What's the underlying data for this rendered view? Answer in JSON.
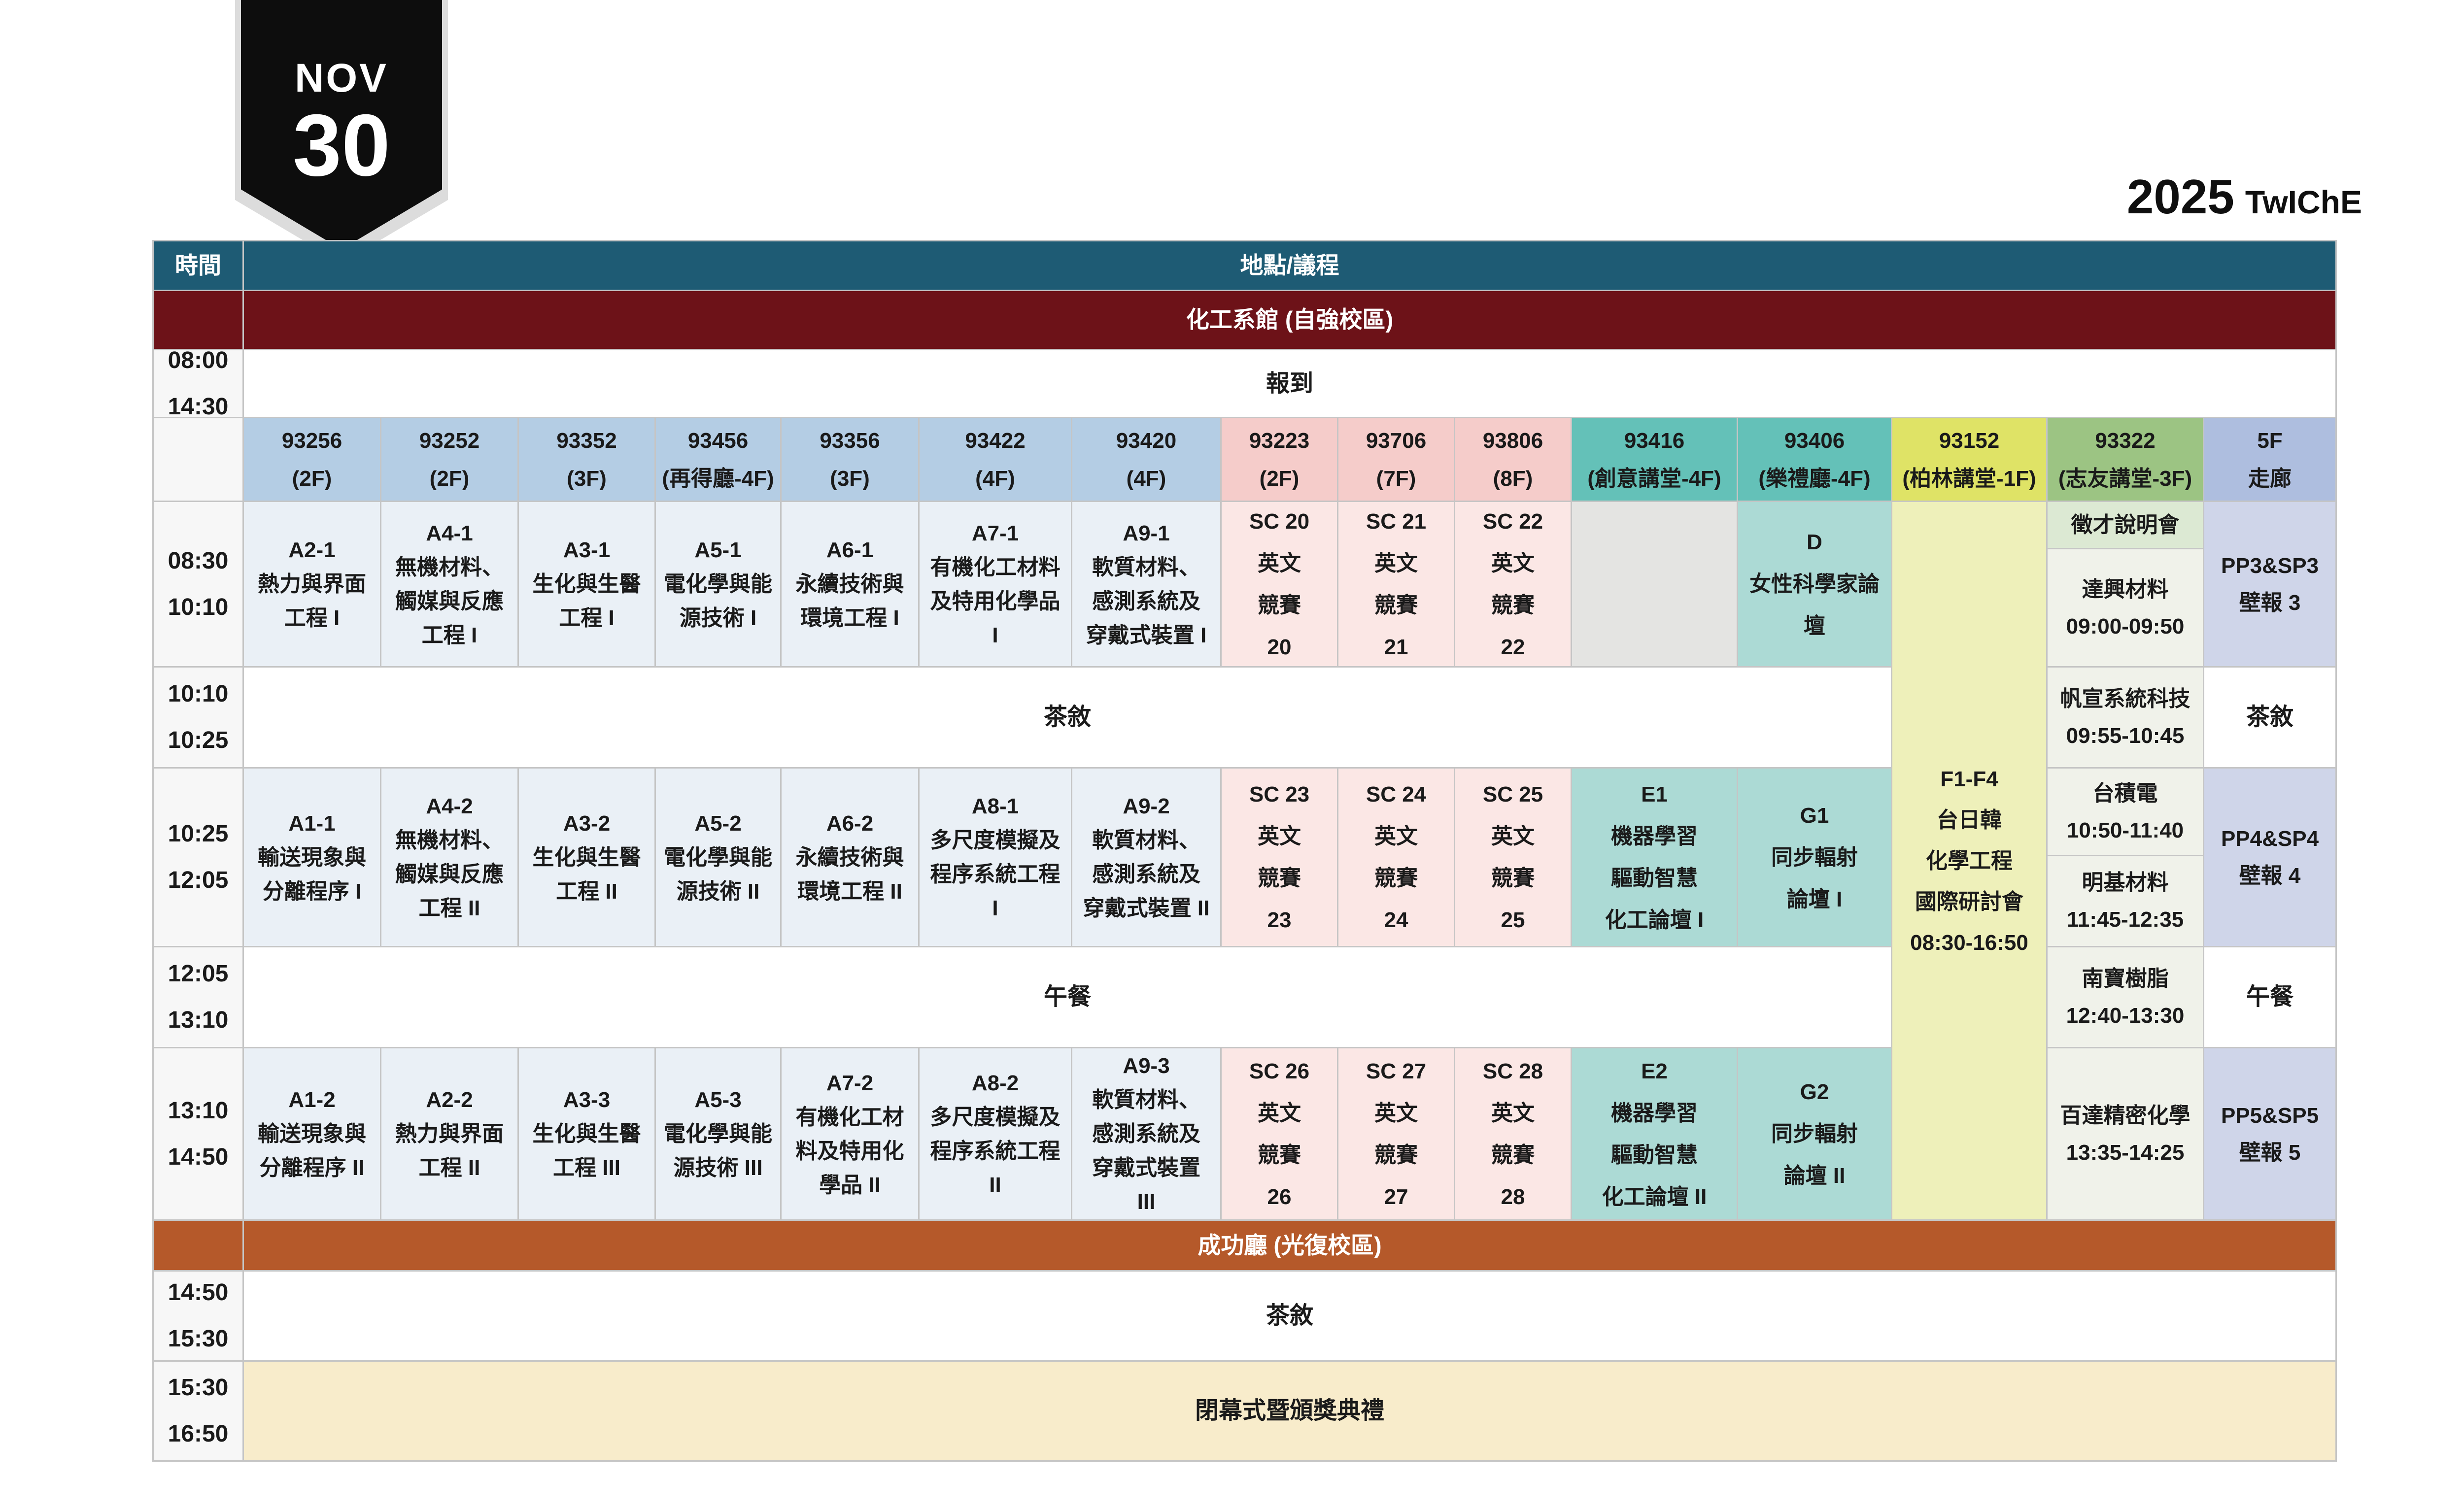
{
  "banner": {
    "month": "NOV",
    "day": "30"
  },
  "title": {
    "year": "2025",
    "brand": "TwIChE"
  },
  "kind_styles": {
    "th": {
      "bg": "#1E5B74",
      "fg": "#FFFFFF"
    },
    "red": {
      "bg": "#6D1218",
      "fg": "#FFFFFF"
    },
    "orange": {
      "bg": "#B5592A",
      "fg": "#FFFFFF"
    },
    "time": {
      "bg": "#F7F7F7"
    },
    "timeblank": {
      "bg": "#F7F7F7"
    },
    "plain": {
      "bg": "#FFFFFF"
    },
    "cream": {
      "bg": "#F8ECCB"
    },
    "session": {
      "bg": "#EAF0F6"
    },
    "sc": {
      "bg": "#FBE7E5"
    },
    "gray": {
      "bg": "#E4E4E2"
    },
    "forum": {
      "bg": "#ACDAD5"
    },
    "f1f4": {
      "bg": "#EEF0BA"
    },
    "recruit": {
      "bg": "#DCE9D3"
    },
    "sponsor": {
      "bg": "#F0F2EA"
    },
    "poster": {
      "bg": "#CFD5E9"
    },
    "hb": {
      "bg": "#B4CDE4"
    },
    "hp": {
      "bg": "#F5CCCA"
    },
    "ht": {
      "bg": "#64C1B8"
    },
    "hy": {
      "bg": "#DFE366"
    },
    "hg": {
      "bg": "#9CC483"
    },
    "hl": {
      "bg": "#AEBEDF"
    }
  },
  "table": {
    "cells": [
      {
        "n": "time-header",
        "k": "th",
        "c": 1,
        "r": 1,
        "t": [
          "時間"
        ]
      },
      {
        "n": "venue-header",
        "k": "th",
        "c": 2,
        "r": 1,
        "cs": 15,
        "t": [
          "地點/議程"
        ]
      },
      {
        "n": "building-1-time",
        "k": "red",
        "c": 1,
        "r": 2,
        "t": []
      },
      {
        "n": "building-1",
        "k": "red",
        "c": 2,
        "r": 2,
        "cs": 15,
        "t": [
          "化工系館 (自強校區)"
        ]
      },
      {
        "n": "time-registration",
        "k": "time",
        "c": 1,
        "r": 3,
        "t": [
          "08:00",
          "14:30"
        ]
      },
      {
        "n": "registration",
        "k": "plain",
        "c": 2,
        "r": 3,
        "cs": 15,
        "t": [
          "報到"
        ]
      },
      {
        "n": "colhead-blank",
        "k": "timeblank",
        "c": 1,
        "r": 4,
        "t": []
      },
      {
        "n": "colhead-93256",
        "k": "hb",
        "c": 2,
        "r": 4,
        "t": [
          "93256",
          "(2F)"
        ]
      },
      {
        "n": "colhead-93252",
        "k": "hb",
        "c": 3,
        "r": 4,
        "t": [
          "93252",
          "(2F)"
        ]
      },
      {
        "n": "colhead-93352",
        "k": "hb",
        "c": 4,
        "r": 4,
        "t": [
          "93352",
          "(3F)"
        ]
      },
      {
        "n": "colhead-93456",
        "k": "hb",
        "c": 5,
        "r": 4,
        "t": [
          "93456",
          "(再得廳-4F)"
        ]
      },
      {
        "n": "colhead-93356",
        "k": "hb",
        "c": 6,
        "r": 4,
        "t": [
          "93356",
          "(3F)"
        ]
      },
      {
        "n": "colhead-93422",
        "k": "hb",
        "c": 7,
        "r": 4,
        "t": [
          "93422",
          "(4F)"
        ]
      },
      {
        "n": "colhead-93420",
        "k": "hb",
        "c": 8,
        "r": 4,
        "t": [
          "93420",
          "(4F)"
        ]
      },
      {
        "n": "colhead-93223",
        "k": "hp",
        "c": 9,
        "r": 4,
        "t": [
          "93223",
          "(2F)"
        ]
      },
      {
        "n": "colhead-93706",
        "k": "hp",
        "c": 10,
        "r": 4,
        "t": [
          "93706",
          "(7F)"
        ]
      },
      {
        "n": "colhead-93806",
        "k": "hp",
        "c": 11,
        "r": 4,
        "t": [
          "93806",
          "(8F)"
        ]
      },
      {
        "n": "colhead-93416",
        "k": "ht",
        "c": 12,
        "r": 4,
        "t": [
          "93416",
          "(創意講堂-4F)"
        ]
      },
      {
        "n": "colhead-93406",
        "k": "ht",
        "c": 13,
        "r": 4,
        "t": [
          "93406",
          "(樂禮廳-4F)"
        ]
      },
      {
        "n": "colhead-93152",
        "k": "hy",
        "c": 14,
        "r": 4,
        "t": [
          "93152",
          "(柏林講堂-1F)"
        ]
      },
      {
        "n": "colhead-93322",
        "k": "hg",
        "c": 15,
        "r": 4,
        "t": [
          "93322",
          "(志友講堂-3F)"
        ]
      },
      {
        "n": "colhead-5f",
        "k": "hl",
        "c": 16,
        "r": 4,
        "t": [
          "5F",
          "走廊"
        ]
      },
      {
        "n": "time-0830",
        "k": "time",
        "c": 1,
        "r": 5,
        "rs": 2,
        "t": [
          "08:30",
          "10:10"
        ]
      },
      {
        "n": "cell-a2-1",
        "k": "session",
        "c": 2,
        "r": 5,
        "rs": 2,
        "t": [
          "A2-1",
          "熱力與界面",
          "工程 I"
        ]
      },
      {
        "n": "cell-a4-1",
        "k": "session",
        "c": 3,
        "r": 5,
        "rs": 2,
        "t": [
          "A4-1",
          "無機材料、",
          "觸媒與反應",
          "工程 I"
        ]
      },
      {
        "n": "cell-a3-1",
        "k": "session",
        "c": 4,
        "r": 5,
        "rs": 2,
        "t": [
          "A3-1",
          "生化與生醫",
          "工程 I"
        ]
      },
      {
        "n": "cell-a5-1",
        "k": "session",
        "c": 5,
        "r": 5,
        "rs": 2,
        "t": [
          "A5-1",
          "電化學與能",
          "源技術 I"
        ]
      },
      {
        "n": "cell-a6-1",
        "k": "session",
        "c": 6,
        "r": 5,
        "rs": 2,
        "t": [
          "A6-1",
          "永續技術與",
          "環境工程 I"
        ]
      },
      {
        "n": "cell-a7-1",
        "k": "session",
        "c": 7,
        "r": 5,
        "rs": 2,
        "t": [
          "A7-1",
          "有機化工材料",
          "及特用化學品",
          "I"
        ]
      },
      {
        "n": "cell-a9-1",
        "k": "session",
        "c": 8,
        "r": 5,
        "rs": 2,
        "t": [
          "A9-1",
          "軟質材料、",
          "感測系統及",
          "穿戴式裝置 I"
        ]
      },
      {
        "n": "cell-sc20",
        "k": "sc",
        "c": 9,
        "r": 5,
        "rs": 2,
        "t": [
          "SC 20",
          "英文",
          "競賽",
          "20"
        ]
      },
      {
        "n": "cell-sc21",
        "k": "sc",
        "c": 10,
        "r": 5,
        "rs": 2,
        "t": [
          "SC 21",
          "英文",
          "競賽",
          "21"
        ]
      },
      {
        "n": "cell-sc22",
        "k": "sc",
        "c": 11,
        "r": 5,
        "rs": 2,
        "t": [
          "SC 22",
          "英文",
          "競賽",
          "22"
        ]
      },
      {
        "n": "cell-93416-empty",
        "k": "gray",
        "c": 12,
        "r": 5,
        "rs": 2,
        "t": []
      },
      {
        "n": "cell-d-forum",
        "k": "forum",
        "c": 13,
        "r": 5,
        "rs": 2,
        "t": [
          "D",
          "女性科學家論",
          "壇"
        ]
      },
      {
        "n": "cell-f1-f4",
        "k": "f1f4",
        "c": 14,
        "r": 5,
        "rs": 7,
        "t": [
          "F1-F4",
          "台日韓",
          "化學工程",
          "國際研討會",
          "08:30-16:50"
        ]
      },
      {
        "n": "cell-recruit",
        "k": "recruit",
        "c": 15,
        "r": 5,
        "t": [
          "徵才說明會"
        ]
      },
      {
        "n": "cell-daxin",
        "k": "sponsor",
        "c": 15,
        "r": 6,
        "t": [
          "達興材料",
          "09:00-09:50"
        ]
      },
      {
        "n": "cell-pp3",
        "k": "poster",
        "c": 16,
        "r": 5,
        "rs": 2,
        "t": [
          "PP3&SP3",
          "壁報 3"
        ]
      },
      {
        "n": "time-1010",
        "k": "time",
        "c": 1,
        "r": 7,
        "t": [
          "10:10",
          "10:25"
        ]
      },
      {
        "n": "tea-break-1",
        "k": "plain",
        "c": 2,
        "r": 7,
        "cs": 12,
        "t": [
          "茶敘"
        ]
      },
      {
        "n": "cell-mirle",
        "k": "sponsor",
        "c": 15,
        "r": 7,
        "t": [
          "帆宣系統科技",
          "09:55-10:45"
        ]
      },
      {
        "n": "tea-break-1b",
        "k": "plain",
        "c": 16,
        "r": 7,
        "t": [
          "茶敘"
        ]
      },
      {
        "n": "time-1025",
        "k": "time",
        "c": 1,
        "r": 8,
        "rs": 2,
        "t": [
          "10:25",
          "12:05"
        ]
      },
      {
        "n": "cell-a1-1",
        "k": "session",
        "c": 2,
        "r": 8,
        "rs": 2,
        "t": [
          "A1-1",
          "輸送現象與",
          "分離程序 I"
        ]
      },
      {
        "n": "cell-a4-2",
        "k": "session",
        "c": 3,
        "r": 8,
        "rs": 2,
        "t": [
          "A4-2",
          "無機材料、",
          "觸媒與反應",
          "工程 II"
        ]
      },
      {
        "n": "cell-a3-2",
        "k": "session",
        "c": 4,
        "r": 8,
        "rs": 2,
        "t": [
          "A3-2",
          "生化與生醫",
          "工程 II"
        ]
      },
      {
        "n": "cell-a5-2",
        "k": "session",
        "c": 5,
        "r": 8,
        "rs": 2,
        "t": [
          "A5-2",
          "電化學與能",
          "源技術 II"
        ]
      },
      {
        "n": "cell-a6-2",
        "k": "session",
        "c": 6,
        "r": 8,
        "rs": 2,
        "t": [
          "A6-2",
          "永續技術與",
          "環境工程 II"
        ]
      },
      {
        "n": "cell-a8-1",
        "k": "session",
        "c": 7,
        "r": 8,
        "rs": 2,
        "t": [
          "A8-1",
          "多尺度模擬及",
          "程序系統工程",
          "I"
        ]
      },
      {
        "n": "cell-a9-2",
        "k": "session",
        "c": 8,
        "r": 8,
        "rs": 2,
        "t": [
          "A9-2",
          "軟質材料、",
          "感測系統及",
          "穿戴式裝置 II"
        ]
      },
      {
        "n": "cell-sc23",
        "k": "sc",
        "c": 9,
        "r": 8,
        "rs": 2,
        "t": [
          "SC 23",
          "英文",
          "競賽",
          "23"
        ]
      },
      {
        "n": "cell-sc24",
        "k": "sc",
        "c": 10,
        "r": 8,
        "rs": 2,
        "t": [
          "SC 24",
          "英文",
          "競賽",
          "24"
        ]
      },
      {
        "n": "cell-sc25",
        "k": "sc",
        "c": 11,
        "r": 8,
        "rs": 2,
        "t": [
          "SC 25",
          "英文",
          "競賽",
          "25"
        ]
      },
      {
        "n": "cell-e1",
        "k": "forum",
        "c": 12,
        "r": 8,
        "rs": 2,
        "t": [
          "E1",
          "機器學習",
          "驅動智慧",
          "化工論壇 I"
        ]
      },
      {
        "n": "cell-g1",
        "k": "forum",
        "c": 13,
        "r": 8,
        "rs": 2,
        "t": [
          "G1",
          "同步輻射",
          "論壇 I"
        ]
      },
      {
        "n": "cell-tsmc",
        "k": "sponsor",
        "c": 15,
        "r": 8,
        "t": [
          "台積電",
          "10:50-11:40"
        ]
      },
      {
        "n": "cell-benq",
        "k": "sponsor",
        "c": 15,
        "r": 9,
        "t": [
          "明基材料",
          "11:45-12:35"
        ]
      },
      {
        "n": "cell-pp4",
        "k": "poster",
        "c": 16,
        "r": 8,
        "rs": 2,
        "t": [
          "PP4&SP4",
          "壁報 4"
        ]
      },
      {
        "n": "time-1205",
        "k": "time",
        "c": 1,
        "r": 10,
        "t": [
          "12:05",
          "13:10"
        ]
      },
      {
        "n": "lunch-1",
        "k": "plain",
        "c": 2,
        "r": 10,
        "cs": 12,
        "t": [
          "午餐"
        ]
      },
      {
        "n": "cell-nanpao",
        "k": "sponsor",
        "c": 15,
        "r": 10,
        "t": [
          "南寶樹脂",
          "12:40-13:30"
        ]
      },
      {
        "n": "lunch-1b",
        "k": "plain",
        "c": 16,
        "r": 10,
        "t": [
          "午餐"
        ]
      },
      {
        "n": "time-1310",
        "k": "time",
        "c": 1,
        "r": 11,
        "t": [
          "13:10",
          "14:50"
        ]
      },
      {
        "n": "cell-a1-2",
        "k": "session",
        "c": 2,
        "r": 11,
        "t": [
          "A1-2",
          "輸送現象與",
          "分離程序 II"
        ]
      },
      {
        "n": "cell-a2-2",
        "k": "session",
        "c": 3,
        "r": 11,
        "t": [
          "A2-2",
          "熱力與界面",
          "工程 II"
        ]
      },
      {
        "n": "cell-a3-3",
        "k": "session",
        "c": 4,
        "r": 11,
        "t": [
          "A3-3",
          "生化與生醫",
          "工程 III"
        ]
      },
      {
        "n": "cell-a5-3",
        "k": "session",
        "c": 5,
        "r": 11,
        "t": [
          "A5-3",
          "電化學與能",
          "源技術 III"
        ]
      },
      {
        "n": "cell-a7-2",
        "k": "session",
        "c": 6,
        "r": 11,
        "t": [
          "A7-2",
          "有機化工材",
          "料及特用化",
          "學品 II"
        ]
      },
      {
        "n": "cell-a8-2",
        "k": "session",
        "c": 7,
        "r": 11,
        "t": [
          "A8-2",
          "多尺度模擬及",
          "程序系統工程",
          "II"
        ]
      },
      {
        "n": "cell-a9-3",
        "k": "session",
        "c": 8,
        "r": 11,
        "t": [
          "A9-3",
          "軟質材料、",
          "感測系統及",
          "穿戴式裝置",
          "III"
        ]
      },
      {
        "n": "cell-sc26",
        "k": "sc",
        "c": 9,
        "r": 11,
        "t": [
          "SC 26",
          "英文",
          "競賽",
          "26"
        ]
      },
      {
        "n": "cell-sc27",
        "k": "sc",
        "c": 10,
        "r": 11,
        "t": [
          "SC 27",
          "英文",
          "競賽",
          "27"
        ]
      },
      {
        "n": "cell-sc28",
        "k": "sc",
        "c": 11,
        "r": 11,
        "t": [
          "SC 28",
          "英文",
          "競賽",
          "28"
        ]
      },
      {
        "n": "cell-e2",
        "k": "forum",
        "c": 12,
        "r": 11,
        "t": [
          "E2",
          "機器學習",
          "驅動智慧",
          "化工論壇 II"
        ]
      },
      {
        "n": "cell-g2",
        "k": "forum",
        "c": 13,
        "r": 11,
        "t": [
          "G2",
          "同步輻射",
          "論壇 II"
        ]
      },
      {
        "n": "cell-pidc",
        "k": "sponsor",
        "c": 15,
        "r": 11,
        "t": [
          "百達精密化學",
          "13:35-14:25"
        ]
      },
      {
        "n": "cell-pp5",
        "k": "poster",
        "c": 16,
        "r": 11,
        "t": [
          "PP5&SP5",
          "壁報 5"
        ]
      },
      {
        "n": "building-2-time",
        "k": "orange",
        "c": 1,
        "r": 12,
        "t": []
      },
      {
        "n": "building-2",
        "k": "orange",
        "c": 2,
        "r": 12,
        "cs": 15,
        "t": [
          "成功廳 (光復校區)"
        ]
      },
      {
        "n": "time-1450",
        "k": "time",
        "c": 1,
        "r": 13,
        "t": [
          "14:50",
          "15:30"
        ]
      },
      {
        "n": "tea-break-2",
        "k": "plain",
        "c": 2,
        "r": 13,
        "cs": 15,
        "t": [
          "茶敘"
        ]
      },
      {
        "n": "time-1530",
        "k": "time",
        "c": 1,
        "r": 14,
        "t": [
          "15:30",
          "16:50"
        ]
      },
      {
        "n": "closing",
        "k": "cream",
        "c": 2,
        "r": 14,
        "cs": 15,
        "t": [
          "閉幕式暨頒獎典禮"
        ]
      }
    ]
  }
}
